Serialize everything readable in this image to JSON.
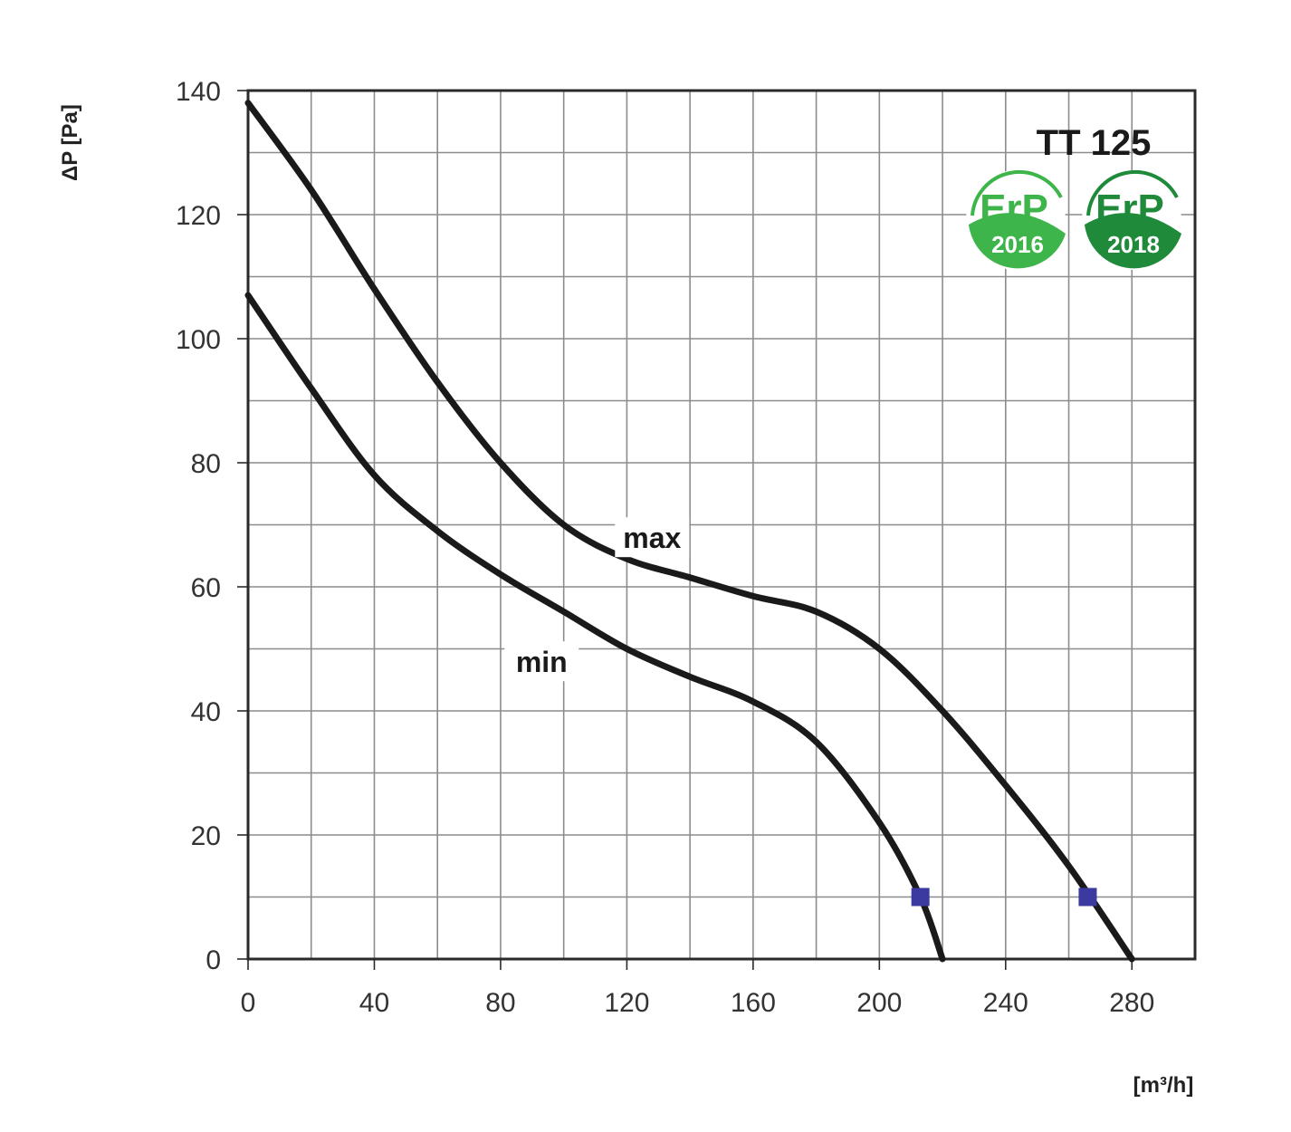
{
  "chart_data": {
    "type": "line",
    "title": "TT 125",
    "xlabel": "[m³/h]",
    "ylabel": "ΔP [Pa]",
    "xlim": [
      0,
      300
    ],
    "ylim": [
      0,
      140
    ],
    "x_ticks": [
      0,
      40,
      80,
      120,
      160,
      200,
      240,
      280
    ],
    "y_ticks": [
      0,
      20,
      40,
      60,
      80,
      100,
      120,
      140
    ],
    "grid": true,
    "grid_x_step": 20,
    "grid_y_step": 10,
    "series": [
      {
        "name": "max",
        "x": [
          0,
          20,
          40,
          60,
          80,
          100,
          120,
          140,
          160,
          180,
          200,
          220,
          240,
          260,
          280
        ],
        "values": [
          138,
          124,
          108,
          93,
          80,
          70,
          64.5,
          61.5,
          58.5,
          56,
          50,
          40,
          28,
          15,
          0
        ]
      },
      {
        "name": "min",
        "x": [
          0,
          20,
          40,
          60,
          80,
          100,
          120,
          140,
          160,
          180,
          200,
          213,
          220
        ],
        "values": [
          107,
          92,
          78,
          69,
          62,
          56,
          50,
          45.5,
          41.5,
          35,
          22,
          10,
          0
        ]
      }
    ],
    "markers": [
      {
        "series": "min",
        "x": 213,
        "y": 10,
        "color": "#3a3aa0"
      },
      {
        "series": "max",
        "x": 266,
        "y": 10,
        "color": "#3a3aa0"
      }
    ],
    "annotations": [
      {
        "text": "max",
        "x": 128,
        "y": 68
      },
      {
        "text": "min",
        "x": 93,
        "y": 48
      }
    ],
    "badges": [
      {
        "text": "ErP",
        "year": "2016"
      },
      {
        "text": "ErP",
        "year": "2018"
      }
    ]
  },
  "colors": {
    "curve": "#1a1a1a",
    "grid": "#8c8c8c",
    "axis": "#2a2a2a",
    "marker": "#3a3aa0",
    "badge_light": "#3db54a",
    "badge_dark": "#1e8a3a"
  }
}
